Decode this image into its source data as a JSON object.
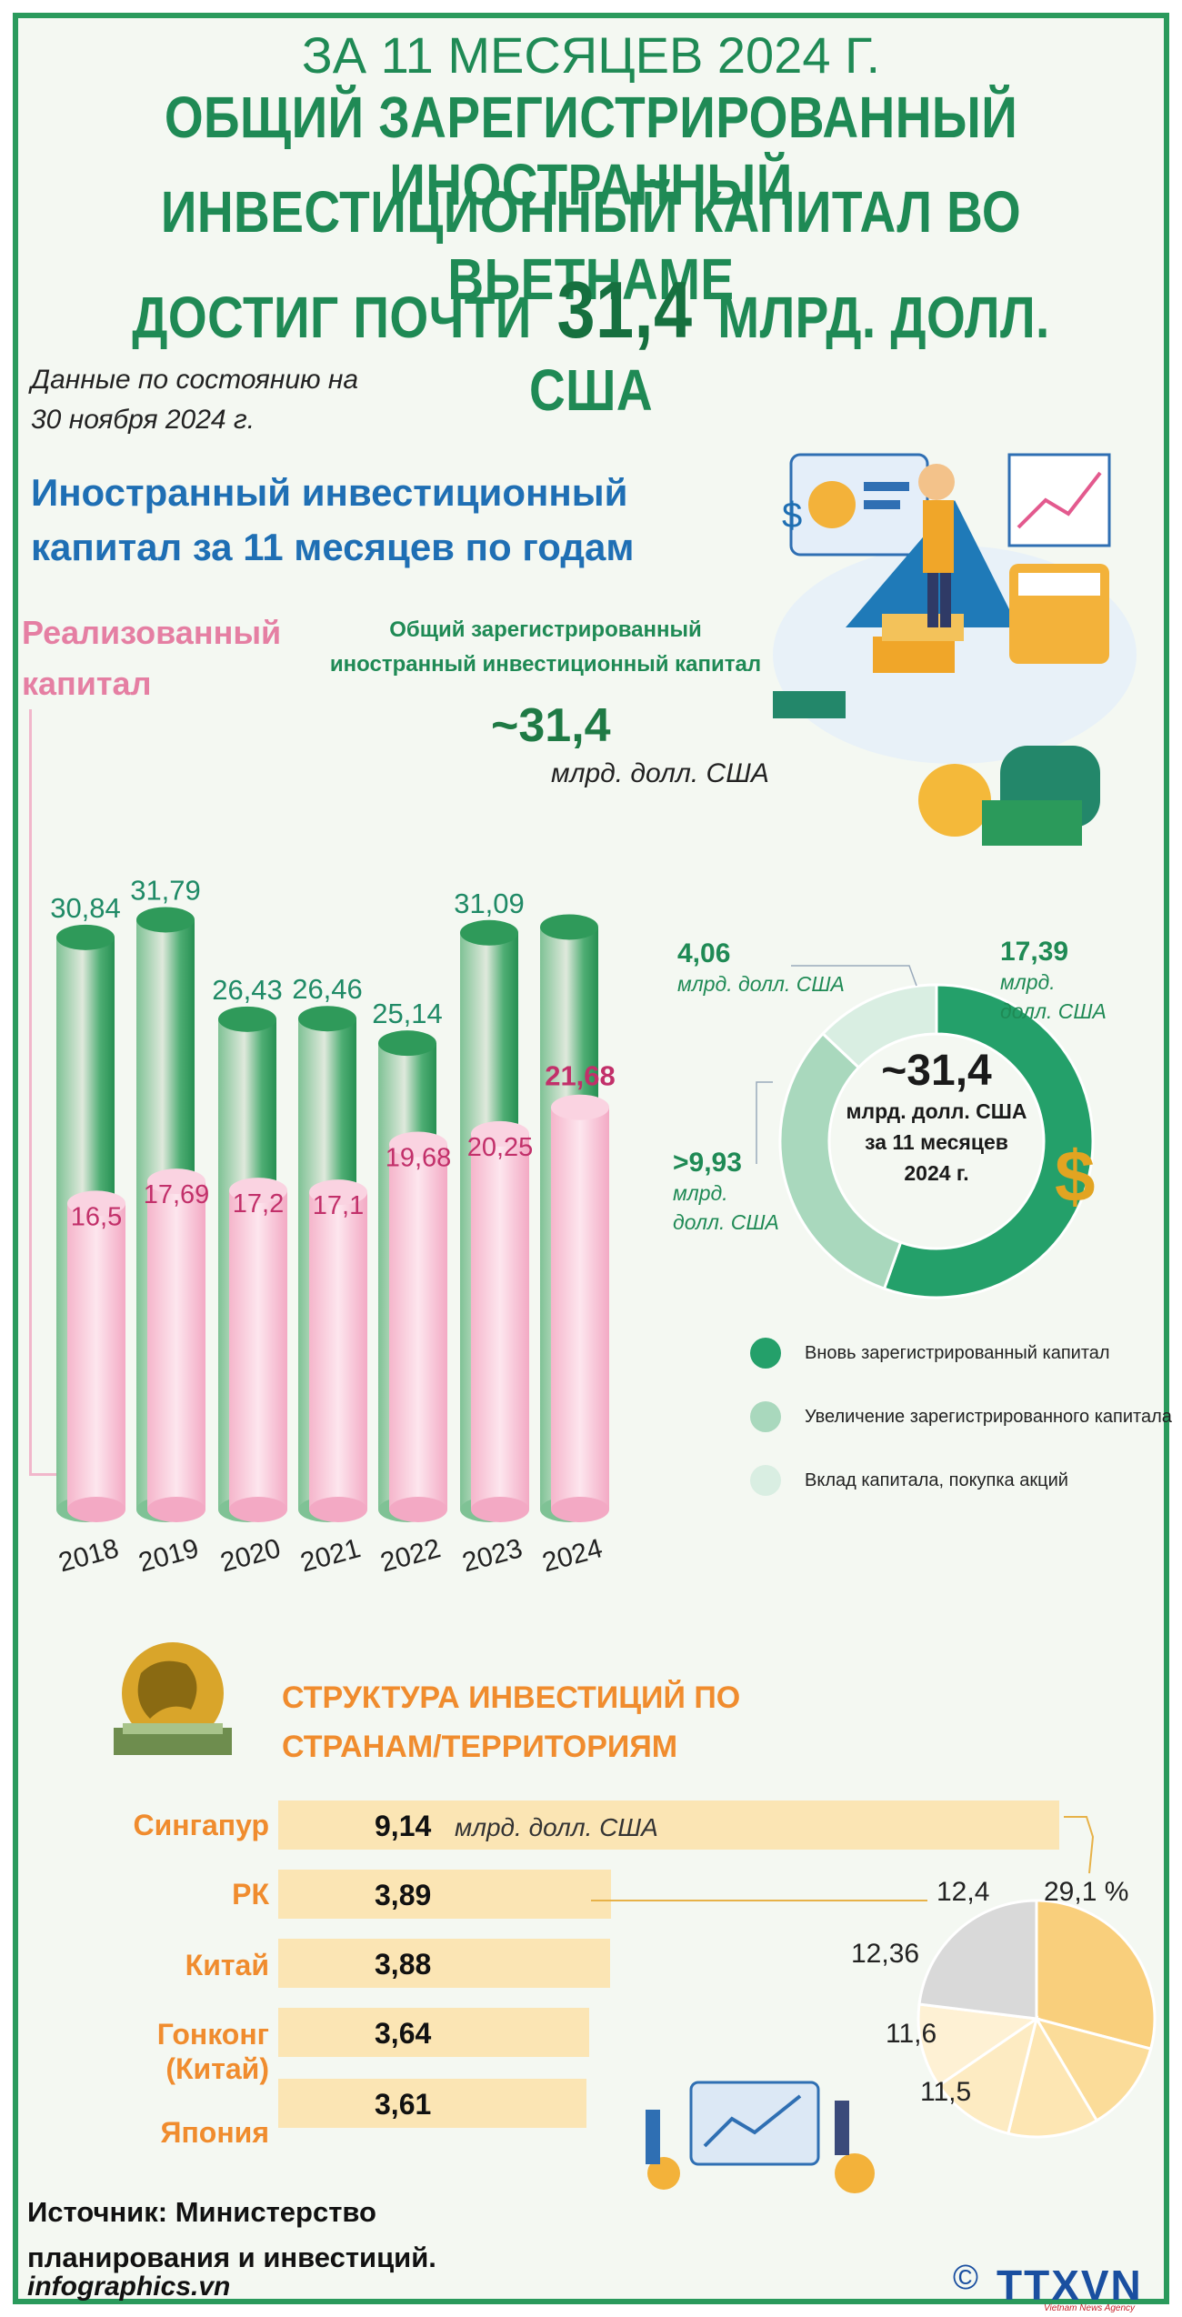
{
  "header": {
    "subtitle": "ЗА 11 МЕСЯЦЕВ 2024 Г.",
    "title_line1": "ОБЩИЙ ЗАРЕГИСТРИРОВАННЫЙ ИНОСТРАННЫЙ",
    "title_line2": "ИНВЕСТИЦИОННЫЙ КАПИТАЛ ВО ВЬЕТНАМЕ",
    "title_line3_a": "ДОСТИГ ПОЧТИ",
    "title_line3_b": "31,4",
    "title_line3_c": "МЛРД. ДОЛЛ. США"
  },
  "note_line1": "Данные по состоянию на",
  "note_line2": "30 ноября 2024 г.",
  "section1": {
    "title_line1": "Иностранный инвестиционный",
    "title_line2": "капитал за 11 месяцев по годам",
    "realized_line1": "Реализованный",
    "realized_line2": "капитал",
    "total_label_line1": "Общий зарегистрированный",
    "total_label_line2": "иностранный инвестиционный капитал",
    "total_value": "~31,4",
    "total_unit": "млрд. долл. США"
  },
  "chart_data": [
    {
      "type": "bar",
      "categories": [
        "2018",
        "2019",
        "2020",
        "2021",
        "2022",
        "2023",
        "2024"
      ],
      "series": [
        {
          "name": "Общий зарегистрированный иностранный инвестиционный капитал",
          "values": [
            30.84,
            31.79,
            26.43,
            26.46,
            25.14,
            31.09,
            31.4
          ],
          "labels": [
            "30,84",
            "31,79",
            "26,43",
            "26,46",
            "25,14",
            "31,09",
            ""
          ]
        },
        {
          "name": "Реализованный капитал",
          "values": [
            16.5,
            17.69,
            17.2,
            17.1,
            19.68,
            20.25,
            21.68
          ],
          "labels": [
            "16,5",
            "17,69",
            "17,2",
            "17,1",
            "19,68",
            "20,25",
            "21,68"
          ]
        }
      ],
      "colors": {
        "total": "#2e9e5e",
        "realized": "#f6b9cf"
      }
    },
    {
      "type": "pie",
      "center_value": "~31,4",
      "center_unit": "млрд. долл. США",
      "center_period_line1": "за 11 месяцев",
      "center_period_line2": "2024 г.",
      "slices": [
        {
          "name": "Вновь зарегистрированный капитал",
          "value": 17.39,
          "label": "17,39",
          "color": "#24a06a"
        },
        {
          "name": "Увеличение зарегистрированного капитала",
          "value": 9.93,
          "label": ">9,93",
          "color": "#a9d8bd"
        },
        {
          "name": "Вклад капитала, покупка акций",
          "value": 4.06,
          "label": "4,06",
          "color": "#d9eee2"
        }
      ],
      "unit_line1": "млрд.",
      "unit_line2": "долл. США",
      "unit_inline": "млрд. долл. США"
    },
    {
      "type": "bar",
      "categories": [
        "Сингапур",
        "РК",
        "Китай",
        "Гонконг (Китай)",
        "Япония"
      ],
      "values": [
        9.14,
        3.89,
        3.88,
        3.64,
        3.61
      ],
      "labels": [
        "9,14",
        "3,89",
        "3,88",
        "3,64",
        "3,61"
      ],
      "unit": "млрд. долл. США"
    },
    {
      "type": "pie",
      "slices": [
        {
          "label": "29,1 %",
          "value": 29.1
        },
        {
          "label": "12,4",
          "value": 12.4
        },
        {
          "label": "12,36",
          "value": 12.36
        },
        {
          "label": "11,6",
          "value": 11.6
        },
        {
          "label": "11,5",
          "value": 11.5
        }
      ],
      "colors": [
        "#f9cf7c",
        "#fbdc99",
        "#fde6b3",
        "#fdebc2",
        "#fef1d4",
        "#d9d9d9"
      ]
    }
  ],
  "section2": {
    "title_line1": "СТРУКТУРА ИНВЕСТИЦИЙ ПО",
    "title_line2": "СТРАНАМ/ТЕРРИТОРИЯМ",
    "country_1": "Сингапур",
    "country_2": "РК",
    "country_3": "Китай",
    "country_4_line1": "Гонконг",
    "country_4_line2": "(Китай)",
    "country_5": "Япония"
  },
  "source_line1": "Источник: Министерство",
  "source_line2": "планирования и инвестиций.",
  "footer_left": "infographics.vn",
  "footer_copyright": "©",
  "footer_right": "TTXVN",
  "footer_agency": "Vietnam News Agency"
}
